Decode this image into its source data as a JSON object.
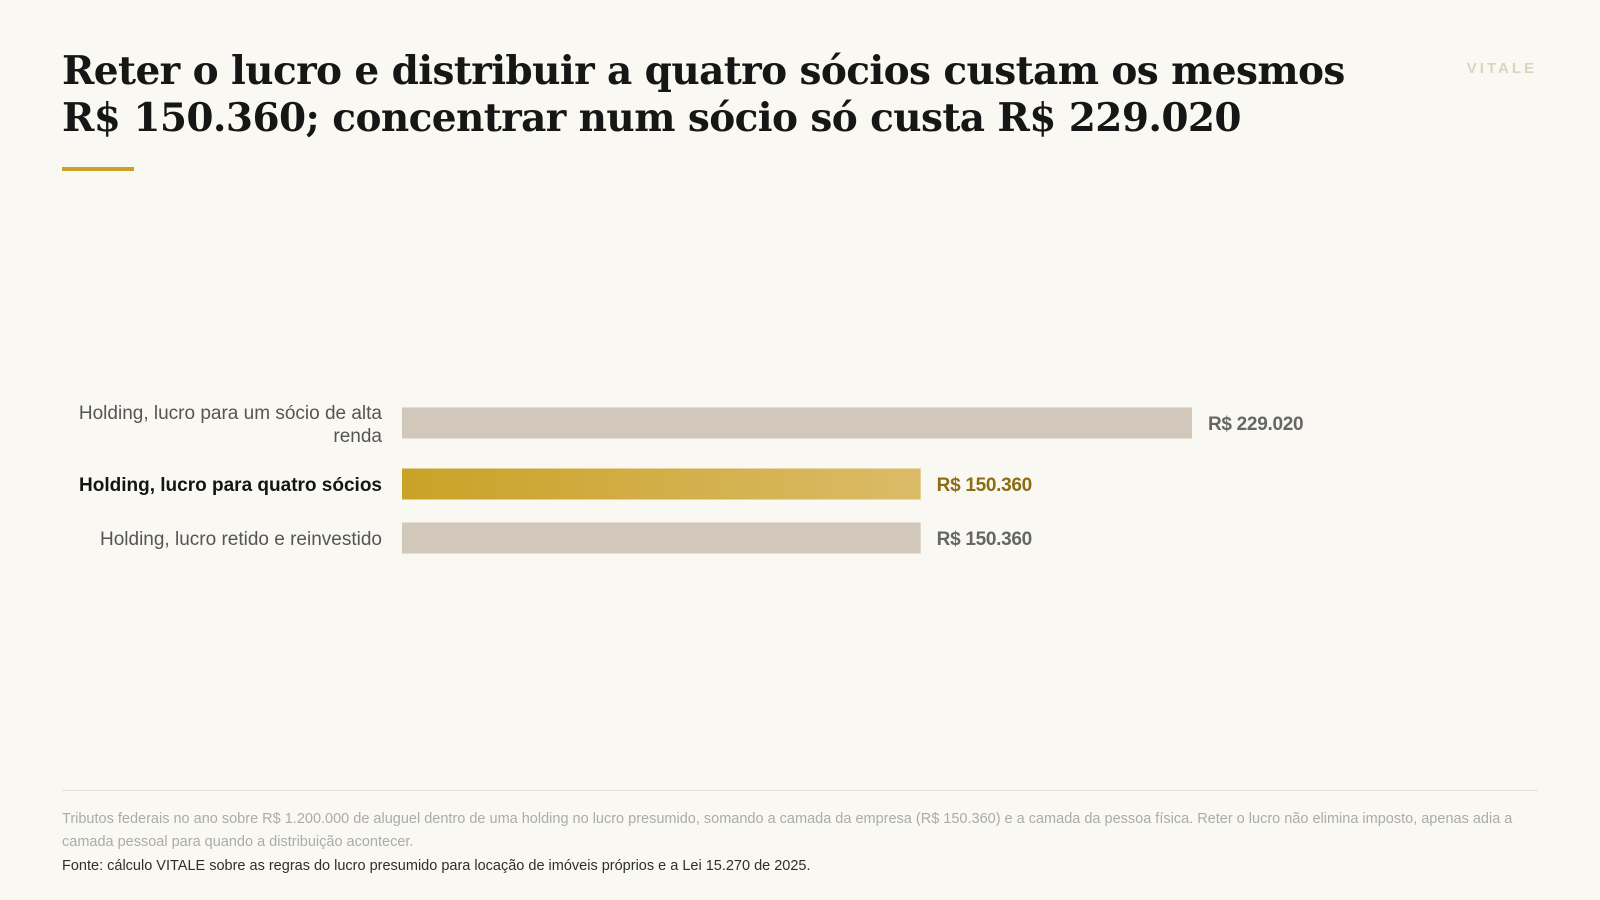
{
  "header": {
    "title": "Reter o lucro e distribuir a quatro sócios custam os mesmos R$ 150.360; concentrar num sócio só custa R$ 229.020",
    "brand": "VITALE"
  },
  "colors": {
    "background": "#f9f8f3",
    "accent": "#c9a227",
    "bar_neutral": "#d1c8bb",
    "highlight_text": "#8d6d13"
  },
  "chart_data": {
    "type": "bar",
    "orientation": "horizontal",
    "categories": [
      "Holding, lucro para um sócio de alta renda",
      "Holding, lucro para quatro sócios",
      "Holding, lucro retido e reinvestido"
    ],
    "values": [
      229020,
      150360,
      150360
    ],
    "value_labels": [
      "R$ 229.020",
      "R$ 150.360",
      "R$ 150.360"
    ],
    "highlighted_index": 1,
    "xlim": [
      0,
      229020
    ],
    "grid": false,
    "legend": "none"
  },
  "footer": {
    "note": "Tributos federais no ano sobre R$ 1.200.000 de aluguel dentro de uma holding no lucro presumido, somando a camada da empresa (R$ 150.360) e a camada da pessoa física. Reter o lucro não elimina imposto, apenas adia a camada pessoal para quando a distribuição acontecer.",
    "source": "Fonte: cálculo VITALE sobre as regras do lucro presumido para locação de imóveis próprios e a Lei 15.270 de 2025."
  }
}
